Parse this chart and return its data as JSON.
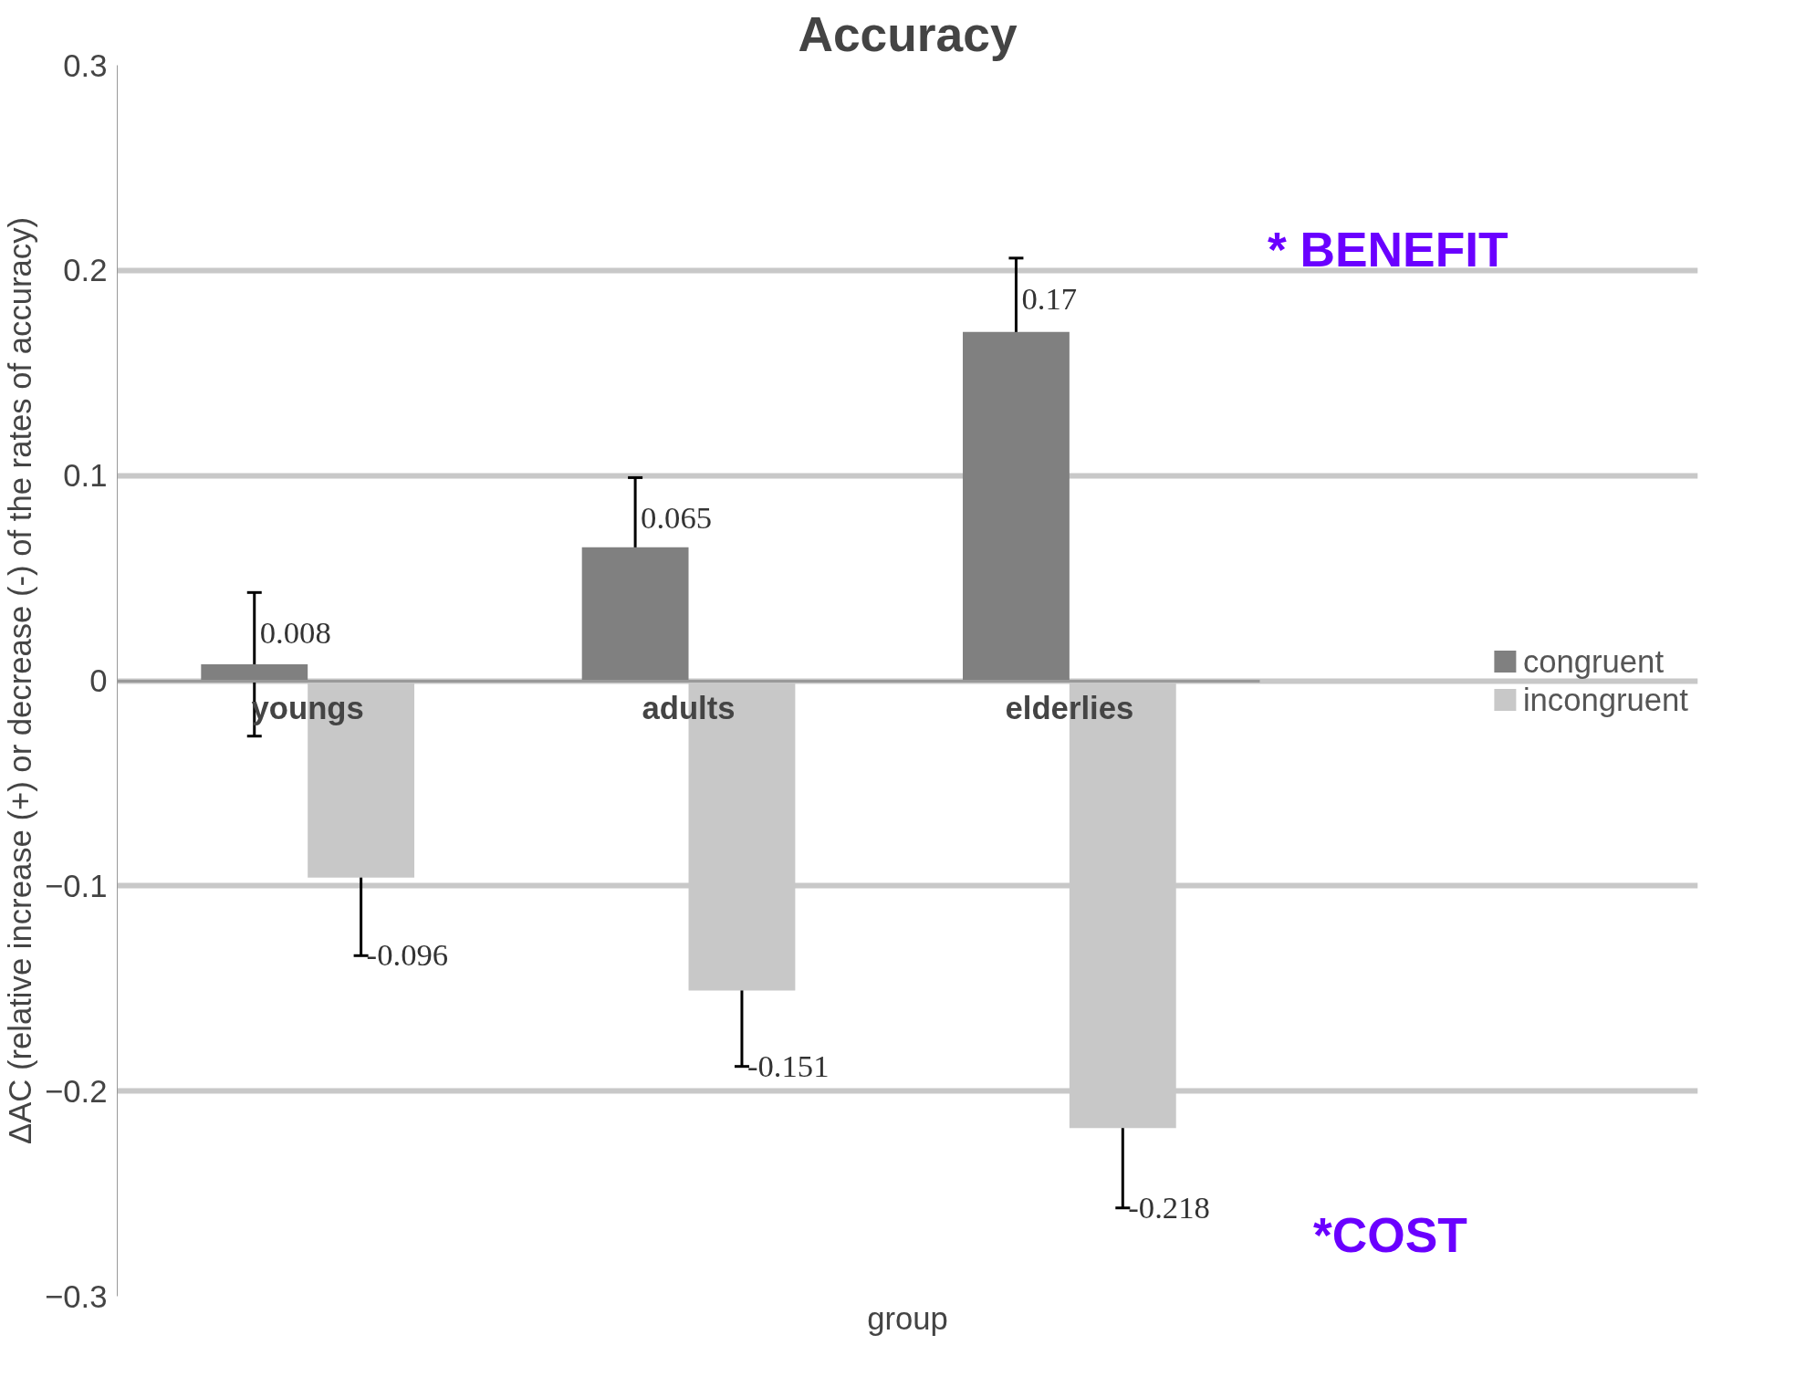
{
  "chart_data": {
    "type": "bar",
    "title": "Accuracy",
    "xlabel": "group",
    "ylabel": "ΔAC (relative increase (+) or decrease (-) of the rates of accuracy)",
    "categories": [
      "youngs",
      "adults",
      "elderlies"
    ],
    "series": [
      {
        "name": "congruent",
        "color": "#808080",
        "values": [
          0.008,
          0.065,
          0.17
        ],
        "errors": [
          0.035,
          0.034,
          0.036
        ]
      },
      {
        "name": "incongruent",
        "color": "#c8c8c8",
        "values": [
          -0.096,
          -0.151,
          -0.218
        ],
        "errors": [
          0.038,
          0.037,
          0.039
        ]
      }
    ],
    "ylim": [
      -0.3,
      0.3
    ],
    "yticks": [
      -0.3,
      -0.2,
      -0.1,
      0,
      0.1,
      0.2,
      0.3
    ],
    "grid": "y",
    "legend": "right",
    "data_labels": true,
    "annotations": [
      "* BENEFIT",
      "*COST"
    ]
  }
}
